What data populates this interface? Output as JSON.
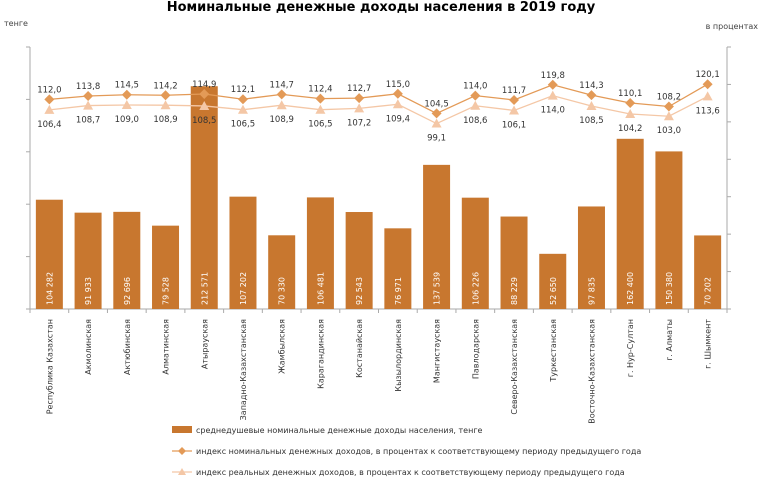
{
  "title": "Номинальные денежные доходы населения в 2019 году",
  "left_unit": "тенге",
  "right_unit": "в процентах",
  "chart_data": {
    "type": "bar",
    "title": "Номинальные денежные доходы населения в 2019 году",
    "categories": [
      "Республика Казахстан",
      "Акмолинская",
      "Актюбинская",
      "Алматинская",
      "Атырауская",
      "Западно-Казахстанская",
      "Жамбылская",
      "Карагандинская",
      "Костанайская",
      "Кызылординская",
      "Мангистауская",
      "Павлодарская",
      "Северо-Казахстанская",
      "Туркестанская",
      "Восточно-Казахстанская",
      "г. Нур-Султан",
      "г. Алматы",
      "г. Шымкент"
    ],
    "series": [
      {
        "name": "среднедушевые номинальные денежные доходы населения, тенге",
        "type": "bar",
        "axis": "left",
        "color": "#C8772F",
        "values": [
          104282,
          91933,
          92696,
          79528,
          212571,
          107202,
          70330,
          106481,
          92543,
          76971,
          137539,
          106226,
          88229,
          52650,
          97835,
          162400,
          150380,
          70202
        ],
        "labels": [
          "104 282",
          "91 933",
          "92 696",
          "79 528",
          "212 571",
          "107 202",
          "70 330",
          "106 481",
          "92 543",
          "76 971",
          "137 539",
          "106 226",
          "88 229",
          "52 650",
          "97 835",
          "162 400",
          "150 380",
          "70 202"
        ]
      },
      {
        "name": "индекс номинальных денежных доходов, в процентах к соответствующему периоду предыдущего года",
        "type": "line",
        "axis": "right",
        "color": "#E39A57",
        "values": [
          112.0,
          113.8,
          114.5,
          114.2,
          114.9,
          112.1,
          114.7,
          112.4,
          112.7,
          115.0,
          104.5,
          114.0,
          111.7,
          119.8,
          114.3,
          110.1,
          108.2,
          120.1
        ],
        "labels": [
          "112,0",
          "113,8",
          "114,5",
          "114,2",
          "114,9",
          "112,1",
          "114,7",
          "112,4",
          "112,7",
          "115,0",
          "104,5",
          "114,0",
          "111,7",
          "119,8",
          "114,3",
          "110,1",
          "108,2",
          "120,1"
        ]
      },
      {
        "name": "индекс реальных денежных доходов, в процентах к соответствующему периоду предыдущего года",
        "type": "line",
        "axis": "right",
        "color": "#F4C7A6",
        "values": [
          106.4,
          108.7,
          109.0,
          108.9,
          108.5,
          106.5,
          108.9,
          106.5,
          107.2,
          109.4,
          99.1,
          108.6,
          106.1,
          114.0,
          108.5,
          104.2,
          103.0,
          113.6
        ],
        "labels": [
          "106,4",
          "108,7",
          "109,0",
          "108,9",
          "108,5",
          "106,5",
          "108,9",
          "106,5",
          "107,2",
          "109,4",
          "99,1",
          "108,6",
          "106,1",
          "114,0",
          "108,5",
          "104,2",
          "103,0",
          "113,6"
        ]
      }
    ],
    "ylim_left": [
      0,
      250000
    ],
    "ylim_right": [
      0,
      140
    ],
    "legend": "bottom"
  }
}
